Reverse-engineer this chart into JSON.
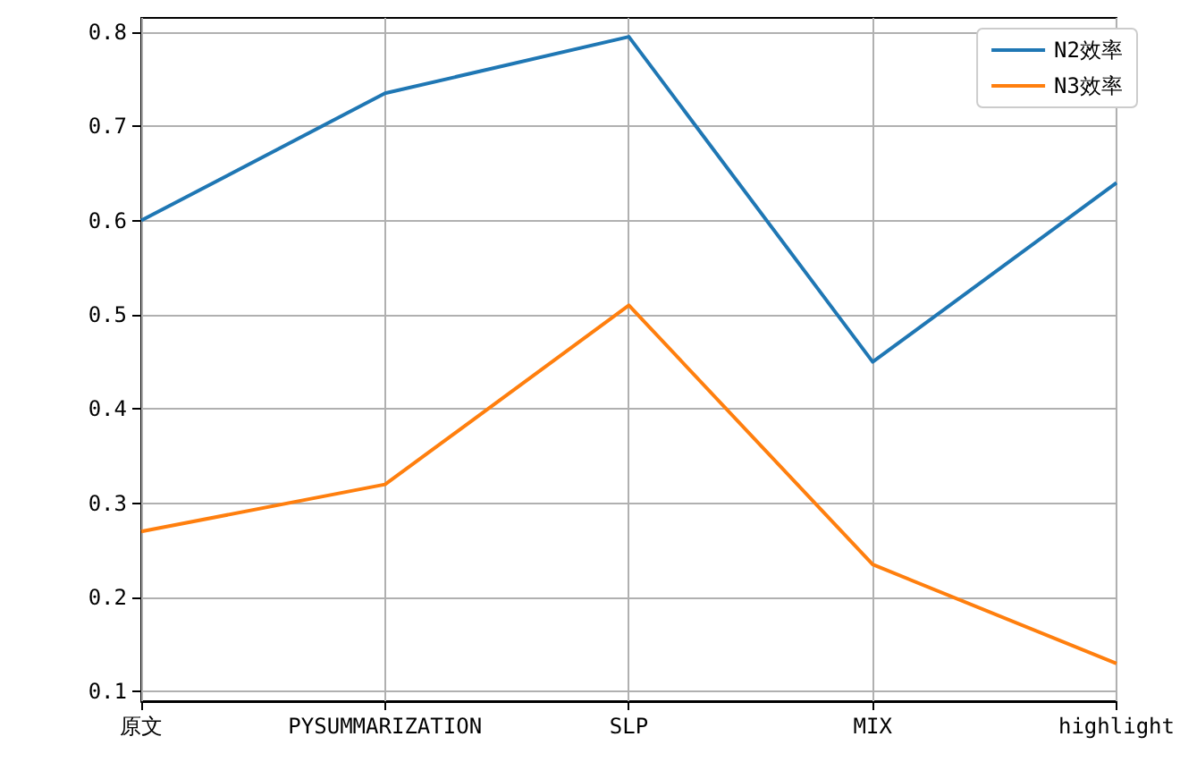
{
  "chart_data": {
    "type": "line",
    "categories": [
      "原文",
      "PYSUMMARIZATION",
      "SLP",
      "MIX",
      "highlight"
    ],
    "series": [
      {
        "name": "N2效率",
        "color": "#1f77b4",
        "values": [
          0.6,
          0.735,
          0.795,
          0.45,
          0.64
        ]
      },
      {
        "name": "N3效率",
        "color": "#ff7f0e",
        "values": [
          0.27,
          0.32,
          0.51,
          0.235,
          0.13
        ]
      }
    ],
    "ylim": [
      0.09,
      0.815
    ],
    "yticks": [
      0.1,
      0.2,
      0.3,
      0.4,
      0.5,
      0.6,
      0.7,
      0.8
    ],
    "grid": true,
    "legend": "top right",
    "marker": "none",
    "line_style": "solid"
  }
}
